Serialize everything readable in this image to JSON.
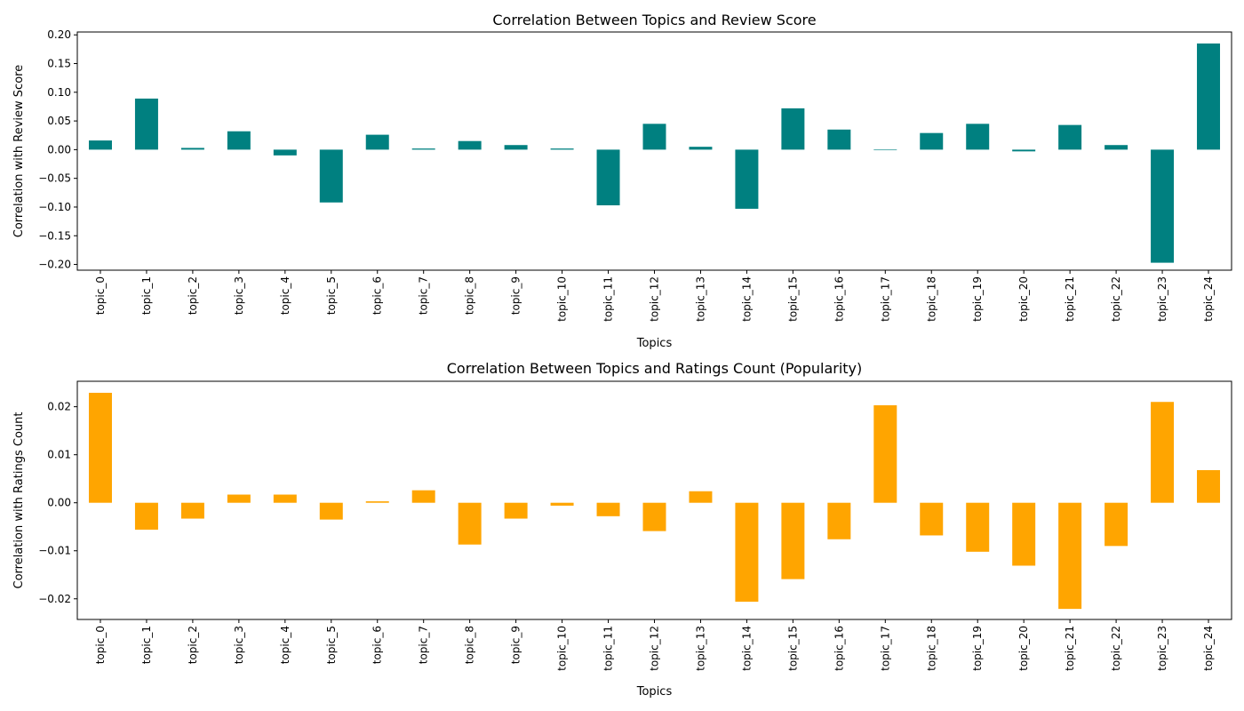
{
  "chart_data": [
    {
      "type": "bar",
      "title": "Correlation Between Topics and Review Score",
      "xlabel": "Topics",
      "ylabel": "Correlation with Review Score",
      "color": "#008080",
      "grid": false,
      "ylim": [
        -0.21,
        0.205
      ],
      "yticks": [
        -0.2,
        -0.15,
        -0.1,
        -0.05,
        0.0,
        0.05,
        0.1,
        0.15,
        0.2
      ],
      "ytick_labels": [
        "−0.20",
        "−0.15",
        "−0.10",
        "−0.05",
        "0.00",
        "0.05",
        "0.10",
        "0.15",
        "0.20"
      ],
      "categories": [
        "topic_0",
        "topic_1",
        "topic_2",
        "topic_3",
        "topic_4",
        "topic_5",
        "topic_6",
        "topic_7",
        "topic_8",
        "topic_9",
        "topic_10",
        "topic_11",
        "topic_12",
        "topic_13",
        "topic_14",
        "topic_15",
        "topic_16",
        "topic_17",
        "topic_18",
        "topic_19",
        "topic_20",
        "topic_21",
        "topic_22",
        "topic_23",
        "topic_24"
      ],
      "values": [
        0.016,
        0.089,
        0.003,
        0.032,
        -0.01,
        -0.092,
        0.026,
        0.002,
        0.015,
        0.008,
        0.002,
        -0.097,
        0.045,
        0.005,
        -0.103,
        0.072,
        0.035,
        -0.001,
        0.029,
        0.045,
        -0.003,
        0.043,
        0.008,
        -0.197,
        0.185
      ]
    },
    {
      "type": "bar",
      "title": "Correlation Between Topics and Ratings Count (Popularity)",
      "xlabel": "Topics",
      "ylabel": "Correlation with Ratings Count",
      "color": "#FFA500",
      "grid": false,
      "ylim": [
        -0.0243,
        0.0253
      ],
      "yticks": [
        -0.02,
        -0.01,
        0.0,
        0.01,
        0.02
      ],
      "ytick_labels": [
        "−0.02",
        "−0.01",
        "0.00",
        "0.01",
        "0.02"
      ],
      "categories": [
        "topic_0",
        "topic_1",
        "topic_2",
        "topic_3",
        "topic_4",
        "topic_5",
        "topic_6",
        "topic_7",
        "topic_8",
        "topic_9",
        "topic_10",
        "topic_11",
        "topic_12",
        "topic_13",
        "topic_14",
        "topic_15",
        "topic_16",
        "topic_17",
        "topic_18",
        "topic_19",
        "topic_20",
        "topic_21",
        "topic_22",
        "topic_23",
        "topic_24"
      ],
      "values": [
        0.0229,
        -0.0056,
        -0.0033,
        0.0017,
        0.0017,
        -0.0035,
        0.0003,
        0.0026,
        -0.0087,
        -0.0033,
        -0.0006,
        -0.0028,
        -0.0059,
        0.0024,
        -0.0206,
        -0.0159,
        -0.0076,
        0.0203,
        -0.0068,
        -0.0102,
        -0.0131,
        -0.0221,
        -0.009,
        0.021,
        0.0068
      ]
    }
  ]
}
